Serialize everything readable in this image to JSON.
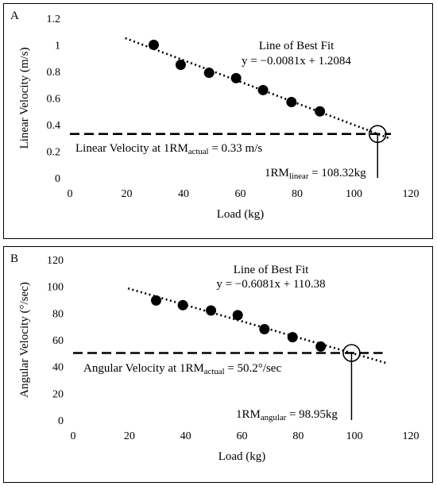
{
  "chart_data": [
    {
      "type": "scatter",
      "panel_label": "A",
      "xlabel": "Load (kg)",
      "ylabel": "Linear Velocity (m/s)",
      "xlim": [
        0,
        120
      ],
      "ylim": [
        0,
        1.2
      ],
      "xticks": [
        "0",
        "20",
        "40",
        "60",
        "80",
        "100",
        "120"
      ],
      "yticks": [
        "0",
        "0.2",
        "0.4",
        "0.6",
        "0.8",
        "1",
        "1.2"
      ],
      "grid": false,
      "points": {
        "x": [
          29.5,
          39,
          49,
          58.5,
          68,
          78,
          88
        ],
        "y": [
          1.0,
          0.85,
          0.79,
          0.75,
          0.66,
          0.57,
          0.5
        ]
      },
      "trendline": {
        "slope": -0.0081,
        "intercept": 1.2084,
        "x_start": 19.5,
        "x_end": 113
      },
      "threshold": {
        "y": 0.33,
        "x_start": 0,
        "x_end": 113
      },
      "marker_1rm": {
        "x": 108.32,
        "y": 0.33
      },
      "annotations": {
        "fit_title": "Line of Best Fit",
        "equation": "y = −0.0081x + 1.2084",
        "threshold_prefix": "Linear Velocity at 1RM",
        "threshold_sub": "actual",
        "threshold_suffix": " = 0.33 m/s",
        "rm_prefix": "1RM",
        "rm_sub": "linear",
        "rm_suffix": " = 108.32kg"
      }
    },
    {
      "type": "scatter",
      "panel_label": "B",
      "xlabel": "Load (kg)",
      "ylabel": "Angular Velocity (°/sec)",
      "xlim": [
        0,
        120
      ],
      "ylim": [
        0,
        120
      ],
      "xticks": [
        "0",
        "20",
        "40",
        "60",
        "80",
        "100",
        "120"
      ],
      "yticks": [
        "0",
        "20",
        "40",
        "60",
        "80",
        "100",
        "120"
      ],
      "grid": false,
      "points": {
        "x": [
          29.5,
          39,
          49,
          58.5,
          68,
          78,
          88
        ],
        "y": [
          89.5,
          86,
          82,
          78.5,
          68,
          62,
          55
        ]
      },
      "trendline": {
        "slope": -0.6081,
        "intercept": 110.38,
        "x_start": 19.5,
        "x_end": 112
      },
      "threshold": {
        "y": 50.2,
        "x_start": 0,
        "x_end": 110
      },
      "marker_1rm": {
        "x": 98.95,
        "y": 50.2
      },
      "annotations": {
        "fit_title": "Line of Best Fit",
        "equation": "y = −0.6081x + 110.38",
        "threshold_prefix": "Angular Velocity at 1RM",
        "threshold_sub": "actual",
        "threshold_suffix": " = 50.2°/sec",
        "rm_prefix": "1RM",
        "rm_sub": "angular",
        "rm_suffix": " = 98.95kg"
      }
    }
  ]
}
